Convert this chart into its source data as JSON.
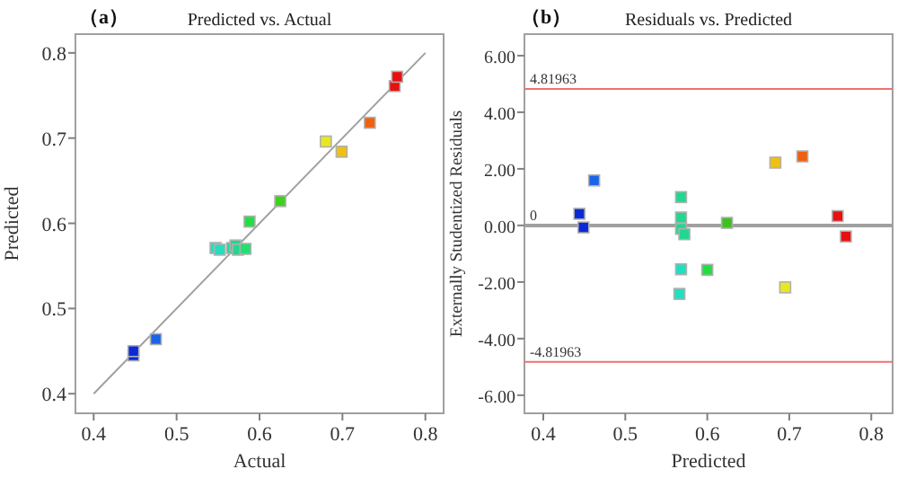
{
  "chart_data": [
    {
      "type": "scatter",
      "title": "Predicted vs. Actual",
      "xlabel": "Actual",
      "ylabel": "Predicted",
      "annotations": [
        "（a）"
      ],
      "xlim": [
        0.378,
        0.822
      ],
      "ylim": [
        0.377,
        0.822
      ],
      "xticks": [
        0.4,
        0.5,
        0.6,
        0.7,
        0.8
      ],
      "yticks": [
        0.4,
        0.5,
        0.6,
        0.7,
        0.8
      ],
      "series": [
        {
          "type": "line",
          "color": "#a0a0a0",
          "x": [
            0.4,
            0.8
          ],
          "values": [
            0.4,
            0.8
          ]
        },
        {
          "marker": "square",
          "x": [
            0.448,
            0.448,
            0.475,
            0.547,
            0.552,
            0.567,
            0.571,
            0.574,
            0.583,
            0.588,
            0.625,
            0.68,
            0.699,
            0.733,
            0.763,
            0.766
          ],
          "values": [
            0.445,
            0.45,
            0.464,
            0.571,
            0.569,
            0.571,
            0.574,
            0.569,
            0.57,
            0.602,
            0.626,
            0.696,
            0.684,
            0.718,
            0.761,
            0.772
          ],
          "colors": [
            "#0a2ad8",
            "#0a2ad8",
            "#1a64e8",
            "#20e0c0",
            "#20e0c0",
            "#20d890",
            "#20d890",
            "#20d890",
            "#20e070",
            "#20e040",
            "#40d020",
            "#e8e820",
            "#f0c010",
            "#f06010",
            "#e81010",
            "#e81010"
          ]
        }
      ]
    },
    {
      "type": "scatter",
      "title": "Residuals vs. Predicted",
      "xlabel": "Predicted",
      "ylabel": "Externally Studentized Residuals",
      "annotations": [
        "（b）"
      ],
      "xlim": [
        0.377,
        0.826
      ],
      "ylim": [
        -6.64,
        6.76
      ],
      "xticks": [
        0.4,
        0.5,
        0.6,
        0.7,
        0.8
      ],
      "yticks": [
        {
          "value": -6,
          "label": "-6.00"
        },
        {
          "value": -4,
          "label": "-4.00"
        },
        {
          "value": -2,
          "label": "-2.00"
        },
        {
          "value": 0,
          "label": "0.00"
        },
        {
          "value": 2,
          "label": "2.00"
        },
        {
          "value": 4,
          "label": "4.00"
        },
        {
          "value": 6,
          "label": "6.00"
        }
      ],
      "ref_lines": [
        {
          "axis": "y",
          "value": 4.81963,
          "label": "4.81963",
          "color": "#f07070"
        },
        {
          "axis": "y",
          "value": -4.81963,
          "label": "-4.81963",
          "color": "#f07070"
        },
        {
          "axis": "y",
          "value": 0,
          "label": "0",
          "color": "#a0a0a0"
        }
      ],
      "series": [
        {
          "marker": "square",
          "x": [
            0.444,
            0.449,
            0.462,
            0.568,
            0.568,
            0.568,
            0.572,
            0.568,
            0.566,
            0.6,
            0.624,
            0.683,
            0.716,
            0.695,
            0.759,
            0.769
          ],
          "values": [
            0.41,
            -0.07,
            1.59,
            1.0,
            0.28,
            -0.12,
            -0.31,
            -1.55,
            -2.42,
            -1.57,
            0.09,
            2.22,
            2.44,
            -2.19,
            0.33,
            -0.39
          ],
          "colors": [
            "#0a2ad8",
            "#0a2ad8",
            "#1a64e8",
            "#20d890",
            "#20d890",
            "#20d890",
            "#20d890",
            "#20e0c0",
            "#20e0c0",
            "#20e040",
            "#40c020",
            "#f0c010",
            "#f06010",
            "#e8e820",
            "#e81010",
            "#e81010"
          ]
        }
      ]
    }
  ]
}
